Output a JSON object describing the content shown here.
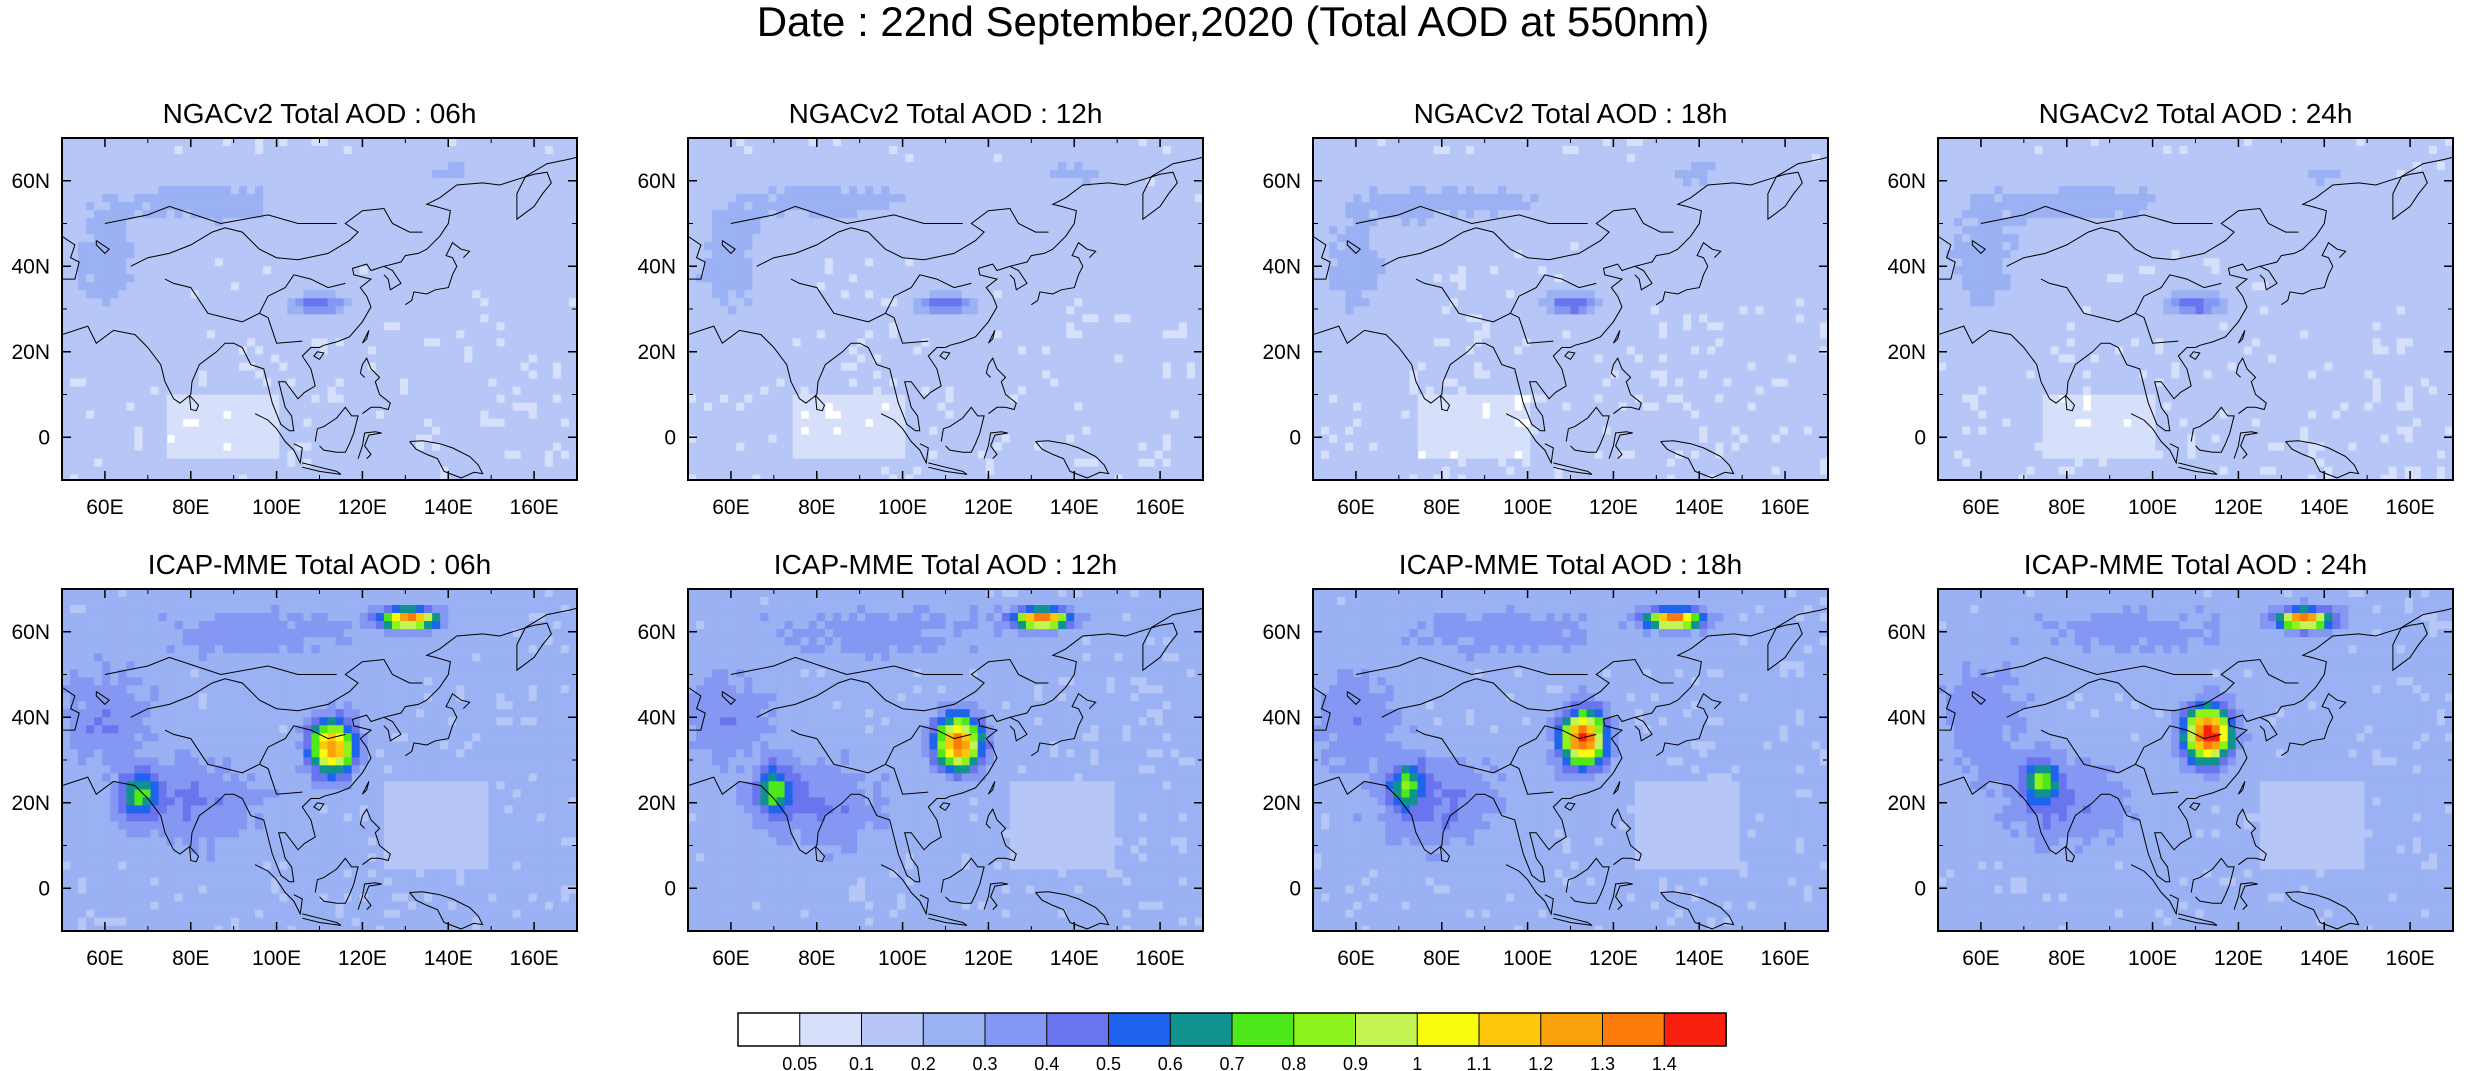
{
  "title": "Date : 22nd September,2020 (Total AOD at 550nm)",
  "chart_data": {
    "type": "heatmap",
    "variable": "Total AOD at 550nm",
    "date": "22nd September,2020",
    "lon_range": [
      50,
      170
    ],
    "lat_range": [
      -10,
      70
    ],
    "lon_ticks": [
      "60E",
      "80E",
      "100E",
      "120E",
      "140E",
      "160E"
    ],
    "lat_ticks": [
      "60N",
      "40N",
      "20N",
      "0"
    ],
    "colorbar": {
      "levels": [
        0.05,
        0.1,
        0.2,
        0.3,
        0.4,
        0.5,
        0.6,
        0.7,
        0.8,
        0.9,
        1,
        1.1,
        1.2,
        1.3,
        1.4
      ],
      "labels": [
        "0.05",
        "0.1",
        "0.2",
        "0.3",
        "0.4",
        "0.5",
        "0.6",
        "0.7",
        "0.8",
        "0.9",
        "1",
        "1.1",
        "1.2",
        "1.3",
        "1.4"
      ],
      "colors": [
        "#ffffff",
        "#d6e0fb",
        "#b6c6f6",
        "#9ab1f3",
        "#8497f2",
        "#6b74ef",
        "#1f64ef",
        "#10938e",
        "#4fe81a",
        "#8ef21c",
        "#c3f452",
        "#fafb0e",
        "#fdc80b",
        "#fba10c",
        "#fb7b0b",
        "#f81f0e"
      ]
    },
    "panels": [
      {
        "title": "NGACv2 Total AOD : 06h",
        "model": "NGACv2",
        "hour": "06h"
      },
      {
        "title": "NGACv2 Total AOD : 12h",
        "model": "NGACv2",
        "hour": "12h"
      },
      {
        "title": "NGACv2 Total AOD : 18h",
        "model": "NGACv2",
        "hour": "18h"
      },
      {
        "title": "NGACv2 Total AOD : 24h",
        "model": "NGACv2",
        "hour": "24h"
      },
      {
        "title": "ICAP-MME Total AOD : 06h",
        "model": "ICAP-MME",
        "hour": "06h"
      },
      {
        "title": "ICAP-MME Total AOD : 12h",
        "model": "ICAP-MME",
        "hour": "12h"
      },
      {
        "title": "ICAP-MME Total AOD : 18h",
        "model": "ICAP-MME",
        "hour": "18h"
      },
      {
        "title": "ICAP-MME Total AOD : 24h",
        "model": "ICAP-MME",
        "hour": "24h"
      }
    ]
  }
}
